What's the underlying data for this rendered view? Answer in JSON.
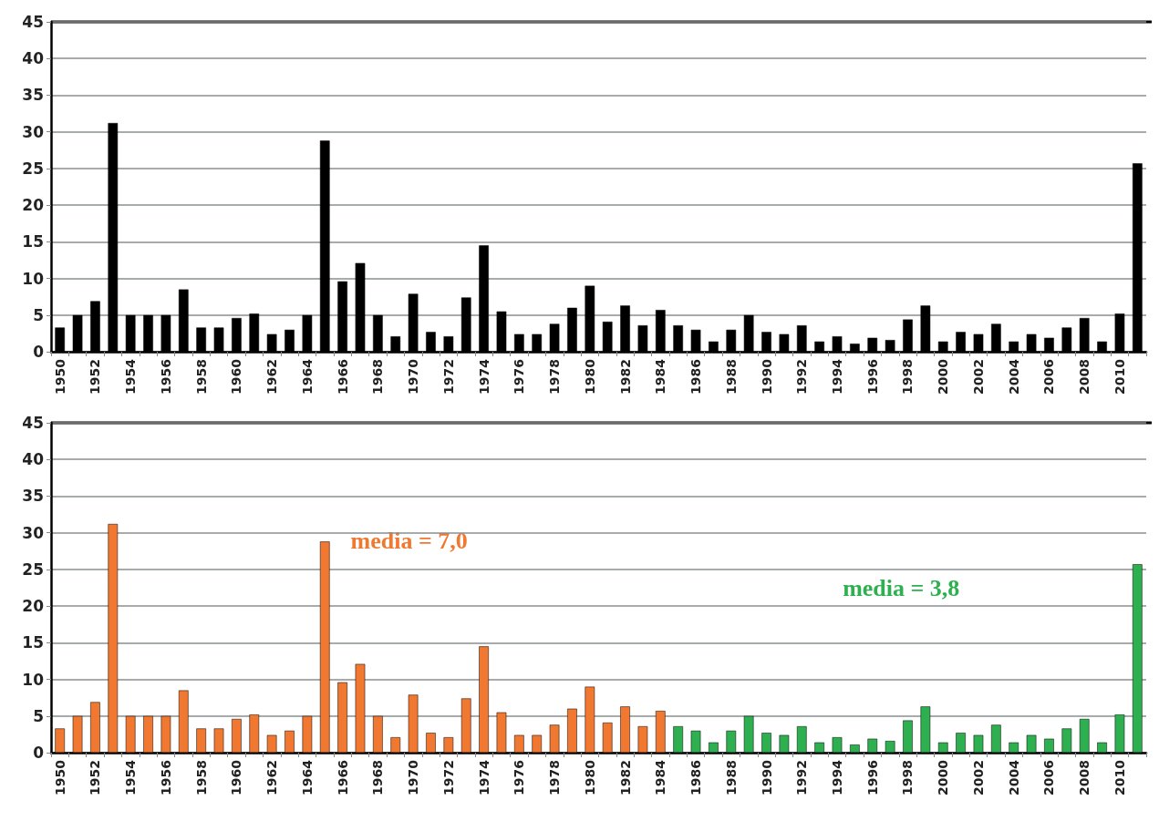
{
  "chart_data": [
    {
      "type": "bar",
      "categories": [
        "1950",
        null,
        "1952",
        null,
        "1954",
        null,
        "1956",
        null,
        "1958",
        null,
        "1960",
        null,
        "1962",
        null,
        "1964",
        null,
        "1966",
        null,
        "1968",
        null,
        "1970",
        null,
        "1972",
        null,
        "1974",
        null,
        "1976",
        null,
        "1978",
        null,
        "1980",
        null,
        "1982",
        null,
        "1984",
        null,
        "1986",
        null,
        "1988",
        null,
        "1990",
        null,
        "1992",
        null,
        "1994",
        null,
        "1996",
        null,
        "1998",
        null,
        "2000",
        null,
        "2002",
        null,
        "2004",
        null,
        "2006",
        null,
        "2008",
        null,
        "2010",
        null
      ],
      "series": [
        {
          "color": "#000000",
          "values": [
            3.3,
            5.0,
            6.9,
            31.2,
            5.0,
            5.0,
            5.0,
            8.5,
            3.3,
            3.3,
            4.6,
            5.2,
            2.4,
            3.0,
            5.0,
            28.8,
            9.6,
            12.1,
            5.0,
            2.1,
            7.9,
            2.7,
            2.1,
            7.4,
            14.5,
            5.5,
            2.4,
            2.4,
            3.8,
            6.0,
            9.0,
            4.1,
            6.3,
            3.6,
            5.7,
            3.6,
            3.0,
            1.4,
            3.0,
            5.0,
            2.7,
            2.4,
            3.6,
            1.4,
            2.1,
            1.1,
            1.9,
            1.6,
            4.4,
            6.3,
            1.4,
            2.7,
            2.4,
            3.8,
            1.4,
            2.4,
            1.9,
            3.3,
            4.6,
            1.4,
            5.2,
            25.7
          ]
        }
      ],
      "ylim": [
        0,
        45
      ],
      "yticks": [
        0,
        5,
        10,
        15,
        20,
        25,
        30,
        35,
        40,
        45
      ],
      "grid": "y",
      "legend": false
    },
    {
      "type": "bar",
      "stacked": true,
      "categories": [
        "1950",
        null,
        "1952",
        null,
        "1954",
        null,
        "1956",
        null,
        "1958",
        null,
        "1960",
        null,
        "1962",
        null,
        "1964",
        null,
        "1966",
        null,
        "1968",
        null,
        "1970",
        null,
        "1972",
        null,
        "1974",
        null,
        "1976",
        null,
        "1978",
        null,
        "1980",
        null,
        "1982",
        null,
        "1984",
        null,
        "1986",
        null,
        "1988",
        null,
        "1990",
        null,
        "1992",
        null,
        "1994",
        null,
        "1996",
        null,
        "1998",
        null,
        "2000",
        null,
        "2002",
        null,
        "2004",
        null,
        "2006",
        null,
        "2008",
        null,
        "2010",
        null
      ],
      "series": [
        {
          "color": "#f07830",
          "values": [
            3.3,
            5.0,
            6.9,
            31.2,
            5.0,
            5.0,
            5.0,
            8.5,
            3.3,
            3.3,
            4.6,
            5.2,
            2.4,
            3.0,
            5.0,
            28.8,
            9.6,
            12.1,
            5.0,
            2.1,
            7.9,
            2.7,
            2.1,
            7.4,
            14.5,
            5.5,
            2.4,
            2.4,
            3.8,
            6.0,
            9.0,
            4.1,
            6.3,
            3.6,
            5.7,
            null,
            null,
            null,
            null,
            null,
            null,
            null,
            null,
            null,
            null,
            null,
            null,
            null,
            null,
            null,
            null,
            null,
            null,
            null,
            null,
            null,
            null,
            null,
            null,
            null,
            null,
            null
          ]
        },
        {
          "color": "#2eb050",
          "values": [
            null,
            null,
            null,
            null,
            null,
            null,
            null,
            null,
            null,
            null,
            null,
            null,
            null,
            null,
            null,
            null,
            null,
            null,
            null,
            null,
            null,
            null,
            null,
            null,
            null,
            null,
            null,
            null,
            null,
            null,
            null,
            null,
            null,
            null,
            null,
            3.6,
            3.0,
            1.4,
            3.0,
            5.0,
            2.7,
            2.4,
            3.6,
            1.4,
            2.1,
            1.1,
            1.9,
            1.6,
            4.4,
            6.3,
            1.4,
            2.7,
            2.4,
            3.8,
            1.4,
            2.4,
            1.9,
            3.3,
            4.6,
            1.4,
            5.2,
            25.7
          ]
        }
      ],
      "ylim": [
        0,
        45
      ],
      "yticks": [
        0,
        5,
        10,
        15,
        20,
        25,
        30,
        35,
        40,
        45
      ],
      "grid": "y",
      "legend": false,
      "annotations": [
        "media = 7,0",
        "media = 3,8"
      ]
    }
  ]
}
